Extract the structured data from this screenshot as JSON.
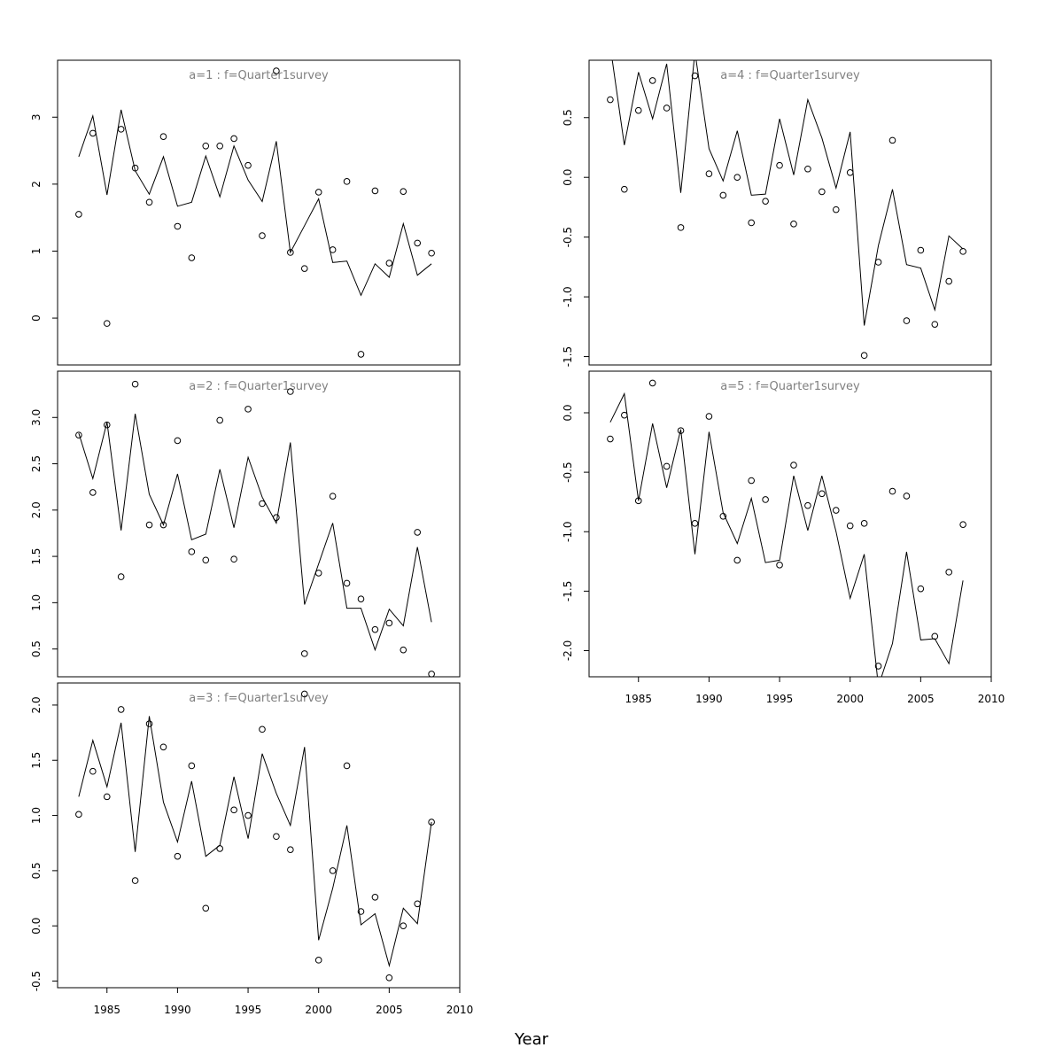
{
  "chart_data": {
    "type": "line",
    "xlabel": "Year",
    "x_ticks": [
      1985,
      1990,
      1995,
      2000,
      2005,
      2010
    ],
    "x": [
      1983,
      1984,
      1985,
      1986,
      1987,
      1988,
      1989,
      1990,
      1991,
      1992,
      1993,
      1994,
      1995,
      1996,
      1997,
      1998,
      1999,
      2000,
      2001,
      2002,
      2003,
      2004,
      2005,
      2006,
      2007,
      2008
    ],
    "xlim": [
      1981.5,
      2010
    ],
    "line_color": "#000000",
    "strip_color": "#808080",
    "panels": [
      {
        "label": "a=1  :  f=Quarter1survey",
        "ylim": [
          -0.7,
          3.85
        ],
        "y_ticks": [
          0,
          1,
          2,
          3
        ],
        "y_tick_labels": [
          "0",
          "1",
          "2",
          "3"
        ],
        "observed": [
          1.55,
          2.76,
          -0.08,
          2.82,
          2.24,
          1.73,
          2.71,
          1.37,
          0.9,
          2.57,
          2.57,
          2.68,
          2.28,
          1.23,
          3.69,
          0.98,
          0.74,
          1.88,
          1.02,
          2.04,
          -0.54,
          1.9,
          0.82,
          1.89,
          1.12,
          0.97
        ],
        "fitted": [
          2.41,
          3.02,
          1.84,
          3.11,
          2.2,
          1.85,
          2.41,
          1.67,
          1.73,
          2.42,
          1.81,
          2.57,
          2.06,
          1.74,
          2.64,
          0.98,
          1.38,
          1.78,
          0.83,
          0.85,
          0.34,
          0.81,
          0.61,
          1.41,
          0.64,
          0.81
        ]
      },
      {
        "label": "a=2  :  f=Quarter1survey",
        "ylim": [
          0.2,
          3.5
        ],
        "y_ticks": [
          0.5,
          1.0,
          1.5,
          2.0,
          2.5,
          3.0
        ],
        "y_tick_labels": [
          "0.5",
          "1.0",
          "1.5",
          "2.0",
          "2.5",
          "3.0"
        ],
        "observed": [
          2.81,
          2.19,
          2.92,
          1.28,
          3.36,
          1.84,
          1.84,
          2.75,
          1.55,
          1.46,
          2.97,
          1.47,
          3.09,
          2.07,
          1.92,
          3.28,
          0.45,
          1.32,
          2.15,
          1.21,
          1.04,
          0.71,
          0.78,
          0.49,
          1.76,
          0.23
        ],
        "fitted": [
          2.83,
          2.34,
          2.95,
          1.78,
          3.04,
          2.17,
          1.84,
          2.39,
          1.68,
          1.74,
          2.44,
          1.81,
          2.57,
          2.14,
          1.86,
          2.73,
          0.98,
          1.42,
          1.86,
          0.94,
          0.94,
          0.49,
          0.93,
          0.75,
          1.6,
          0.79
        ]
      },
      {
        "label": "a=3  :  f=Quarter1survey",
        "ylim": [
          -0.56,
          2.2
        ],
        "y_ticks": [
          -0.5,
          0.0,
          0.5,
          1.0,
          1.5,
          2.0
        ],
        "y_tick_labels": [
          "-0.5",
          "0.0",
          "0.5",
          "1.0",
          "1.5",
          "2.0"
        ],
        "observed": [
          1.01,
          1.4,
          1.17,
          1.96,
          0.41,
          1.83,
          1.62,
          0.63,
          1.45,
          0.16,
          0.7,
          1.05,
          1.0,
          1.78,
          0.81,
          0.69,
          2.1,
          -0.31,
          0.5,
          1.45,
          0.13,
          0.26,
          -0.47,
          0.0,
          0.2,
          0.94
        ],
        "fitted": [
          1.17,
          1.68,
          1.26,
          1.84,
          0.67,
          1.9,
          1.12,
          0.76,
          1.31,
          0.63,
          0.73,
          1.35,
          0.79,
          1.56,
          1.2,
          0.91,
          1.62,
          -0.13,
          0.34,
          0.91,
          0.01,
          0.11,
          -0.36,
          0.16,
          0.02,
          0.94
        ]
      },
      {
        "label": "a=4  :  f=Quarter1survey",
        "ylim": [
          -1.57,
          0.98
        ],
        "y_ticks": [
          -1.5,
          -1.0,
          -0.5,
          0.0,
          0.5
        ],
        "y_tick_labels": [
          "-1.5",
          "-1.0",
          "-0.5",
          "0.0",
          "0.5"
        ],
        "observed": [
          0.65,
          -0.1,
          0.56,
          0.81,
          0.58,
          -0.42,
          0.85,
          0.03,
          -0.15,
          0.0,
          -0.38,
          -0.2,
          0.1,
          -0.39,
          0.07,
          -0.12,
          -0.27,
          0.04,
          -1.49,
          -0.71,
          0.31,
          -1.2,
          -0.61,
          -1.23,
          -0.87,
          -0.62
        ],
        "fitted": [
          1.1,
          0.27,
          0.88,
          0.49,
          0.95,
          -0.13,
          1.05,
          0.24,
          -0.03,
          0.39,
          -0.15,
          -0.14,
          0.49,
          0.02,
          0.65,
          0.33,
          -0.09,
          0.38,
          -1.24,
          -0.57,
          -0.1,
          -0.73,
          -0.76,
          -1.11,
          -0.49,
          -0.6
        ]
      },
      {
        "label": "a=5  :  f=Quarter1survey",
        "ylim": [
          -2.22,
          0.35
        ],
        "y_ticks": [
          -2.0,
          -1.5,
          -1.0,
          -0.5,
          0.0
        ],
        "y_tick_labels": [
          "-2.0",
          "-1.5",
          "-1.0",
          "-0.5",
          "0.0"
        ],
        "observed": [
          -0.22,
          -0.02,
          -0.74,
          0.25,
          -0.45,
          -0.15,
          -0.93,
          -0.03,
          -0.87,
          -1.24,
          -0.57,
          -0.73,
          -1.28,
          -0.44,
          -0.78,
          -0.68,
          -0.82,
          -0.95,
          -0.93,
          -2.13,
          -0.66,
          -0.7,
          -1.48,
          -1.88,
          -1.34,
          -0.94
        ],
        "fitted": [
          -0.08,
          0.16,
          -0.74,
          -0.09,
          -0.63,
          -0.14,
          -1.19,
          -0.16,
          -0.84,
          -1.1,
          -0.72,
          -1.26,
          -1.24,
          -0.53,
          -0.99,
          -0.53,
          -1.0,
          -1.56,
          -1.19,
          -2.3,
          -1.94,
          -1.17,
          -1.91,
          -1.9,
          -2.11,
          -1.41
        ]
      }
    ]
  }
}
